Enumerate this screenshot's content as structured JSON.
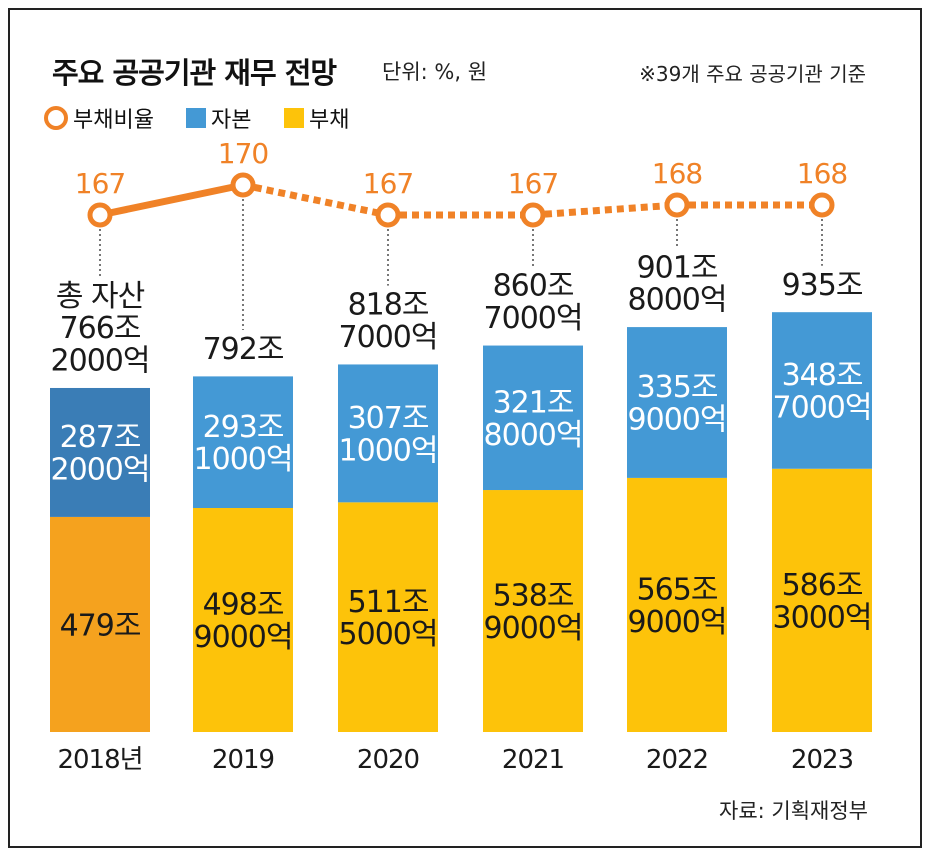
{
  "header": {
    "title": "주요 공공기관 재무 전망",
    "unit": "단위: %, 원",
    "note": "※39개 주요 공공기관 기준"
  },
  "legend": {
    "ratio": "부채비율",
    "equity": "자본",
    "debt": "부채"
  },
  "source": "자료: 기획재정부",
  "colors": {
    "ratio": "#f08227",
    "equity": "#4499d5",
    "debt": "#fdc30a",
    "equity_2018": "#3a7db6",
    "debt_2018": "#f5a21e"
  },
  "chart_data": {
    "type": "bar",
    "stacked": true,
    "categories": [
      "2018년",
      "2019",
      "2020",
      "2021",
      "2022",
      "2023"
    ],
    "series": [
      {
        "name": "부채",
        "values": [
          479,
          498.9,
          511.5,
          538.9,
          565.9,
          586.3
        ],
        "labels": [
          [
            "479조"
          ],
          [
            "498조",
            "9000억"
          ],
          [
            "511조",
            "5000억"
          ],
          [
            "538조",
            "9000억"
          ],
          [
            "565조",
            "9000억"
          ],
          [
            "586조",
            "3000억"
          ]
        ]
      },
      {
        "name": "자본",
        "values": [
          287.2,
          293.1,
          307.1,
          321.8,
          335.9,
          348.7
        ],
        "labels": [
          [
            "287조",
            "2000억"
          ],
          [
            "293조",
            "1000억"
          ],
          [
            "307조",
            "1000억"
          ],
          [
            "321조",
            "8000억"
          ],
          [
            "335조",
            "9000억"
          ],
          [
            "348조",
            "7000억"
          ]
        ]
      }
    ],
    "totals": [
      [
        "총 자산",
        "766조",
        "2000억"
      ],
      [
        "792조"
      ],
      [
        "818조",
        "7000억"
      ],
      [
        "860조",
        "7000억"
      ],
      [
        "901조",
        "8000억"
      ],
      [
        "935조"
      ]
    ],
    "line": {
      "name": "부채비율",
      "values": [
        167,
        170,
        167,
        167,
        168,
        168
      ],
      "actual_until_index": 1
    }
  }
}
